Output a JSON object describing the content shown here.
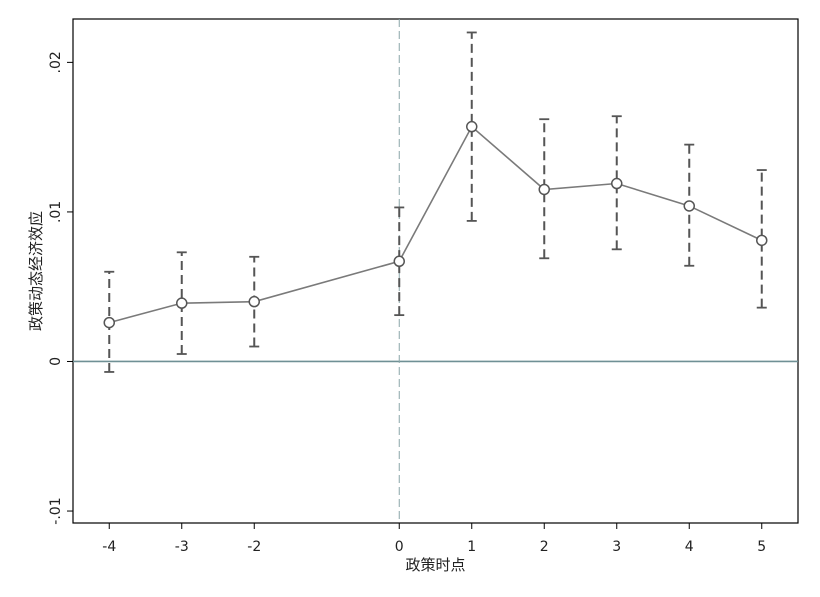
{
  "chart_data": {
    "type": "line",
    "title": "",
    "xlabel": "政策时点",
    "ylabel": "政策动态经济效应",
    "x": [
      -4,
      -3,
      -2,
      0,
      1,
      2,
      3,
      4,
      5
    ],
    "series": [
      {
        "values": [
          0.0026,
          0.0039,
          0.004,
          0.0067,
          0.0157,
          0.0115,
          0.0119,
          0.0104,
          0.0081
        ],
        "ci_low": [
          -0.0007,
          0.0005,
          0.001,
          0.0031,
          0.0094,
          0.0069,
          0.0075,
          0.0064,
          0.0036
        ],
        "ci_high": [
          0.006,
          0.0073,
          0.007,
          0.0103,
          0.022,
          0.0162,
          0.0164,
          0.0145,
          0.0128
        ]
      }
    ],
    "xticks": [
      -4,
      -3,
      -2,
      0,
      1,
      2,
      3,
      4,
      5
    ],
    "xtick_labels": [
      "-4",
      "-3",
      "-2",
      "0",
      "1",
      "2",
      "3",
      "4",
      "5"
    ],
    "yticks": [
      -0.01,
      0,
      0.01,
      0.02
    ],
    "ytick_labels": [
      "-.01",
      "0",
      ".01",
      ".02"
    ],
    "xlim": [
      -4.5,
      5.5
    ],
    "ylim": [
      -0.0108,
      0.0229
    ],
    "reference_lines": {
      "horizontal_y": 0,
      "vertical_x": 0
    },
    "grid": false,
    "colors": {
      "line": "#7a7a7a",
      "ci": "#555555",
      "zero_line": "#6f9095",
      "vline": "#8aa6a8",
      "axis": "#000000"
    }
  }
}
